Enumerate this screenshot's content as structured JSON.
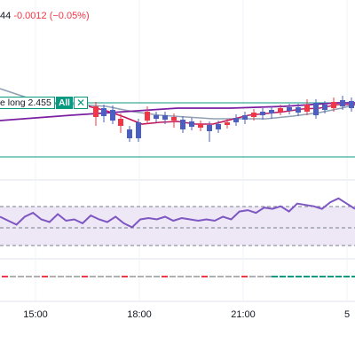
{
  "legend": {
    "last": "44",
    "change": "-0.0012",
    "change_pct": "(−0.05%)"
  },
  "order": {
    "label": "e long 2.455",
    "tag": "All",
    "close_icon": "close-icon",
    "close_glyph": "✕"
  },
  "colors": {
    "up": "#089981",
    "down": "#f23645",
    "wick": "#4a5fc1",
    "ma_fast": "#c2185b",
    "ma_mid": "#7b1fa2",
    "ma_slow": "#8fa1b3",
    "rsi": "#7e57c2",
    "rsi_band": "#ede7f6",
    "order_line": "#089981"
  },
  "time_axis": [
    "15:00",
    "18:00",
    "21:00",
    "5"
  ],
  "chart_data": {
    "type": "candlestick",
    "x_ticks": [
      "15:00",
      "18:00",
      "21:00",
      "5"
    ],
    "rsi": {
      "values": [
        52,
        49,
        46,
        52,
        55,
        50,
        48,
        54,
        49,
        50,
        47,
        53,
        50,
        48,
        52,
        47,
        44,
        50,
        51,
        50,
        52,
        49,
        51,
        50,
        49,
        50,
        49,
        52,
        50,
        56,
        57,
        55,
        59,
        58,
        60,
        56,
        62,
        61,
        60,
        58,
        63,
        66,
        62,
        58
      ]
    }
  }
}
